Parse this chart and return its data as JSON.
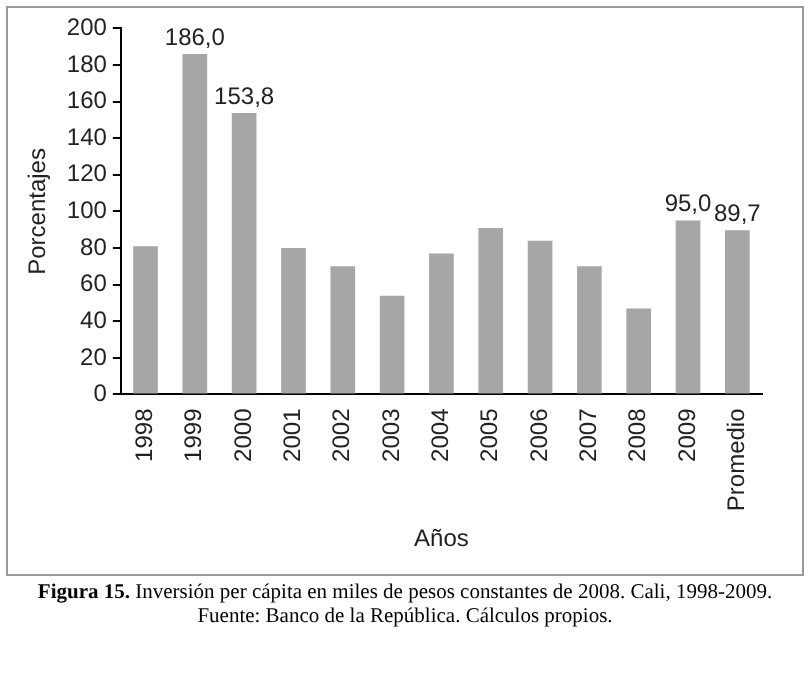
{
  "chart_data": {
    "type": "bar",
    "xlabel": "Años",
    "ylabel": "Porcentajes",
    "categories": [
      "1998",
      "1999",
      "2000",
      "2001",
      "2002",
      "2003",
      "2004",
      "2005",
      "2006",
      "2007",
      "2008",
      "2009",
      "Promedio"
    ],
    "values": [
      81,
      186.0,
      153.8,
      80,
      70,
      54,
      77,
      91,
      84,
      70,
      47,
      95.0,
      89.7
    ],
    "value_labels": [
      null,
      "186,0",
      "153,8",
      null,
      null,
      null,
      null,
      null,
      null,
      null,
      null,
      "95,0",
      "89,7"
    ],
    "color": "#a6a6a8",
    "ylim": [
      0,
      200
    ],
    "yticks": [
      0,
      20,
      40,
      60,
      80,
      100,
      120,
      140,
      160,
      180,
      200
    ],
    "grid": false,
    "legend": false,
    "annotations": [
      "Figura 15. Inversión per cápita en miles de pesos constantes de 2008. Cali, 1998-2009.",
      "Fuente: Banco de la República. Cálculos propios."
    ]
  }
}
